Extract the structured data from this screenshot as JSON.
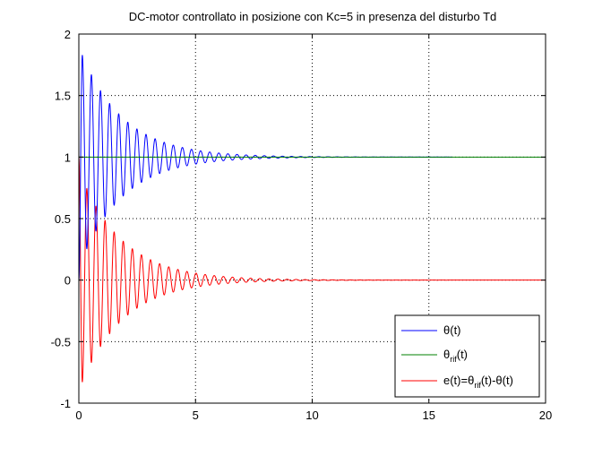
{
  "chart_data": {
    "type": "line",
    "title": "DC-motor controllato in posizione con Kc=5 in presenza del disturbo Td",
    "xlabel": "",
    "ylabel": "",
    "xlim": [
      0,
      20
    ],
    "ylim": [
      -1,
      2
    ],
    "xticks": [
      0,
      5,
      10,
      15,
      20
    ],
    "yticks": [
      -1,
      -0.5,
      0,
      0.5,
      1,
      1.5,
      2
    ],
    "xtick_labels": [
      "0",
      "5",
      "10",
      "15",
      "20"
    ],
    "ytick_labels": [
      "-1",
      "-0.5",
      "0",
      "0.5",
      "1",
      "1.5",
      "2"
    ],
    "grid": true,
    "legend_position": "bottom-right",
    "legend": [
      {
        "base": "θ",
        "sub": "",
        "tail": "(t)",
        "color": "#0000ff"
      },
      {
        "base": "θ",
        "sub": "rif",
        "tail": "(t)",
        "color": "#008000"
      },
      {
        "base": "e(t)=θ",
        "sub": "rif",
        "tail": "(t)-θ(t)",
        "color": "#ff0000"
      }
    ],
    "series": [
      {
        "name": "θ(t)",
        "color": "#0000ff",
        "kind": "damped_oscillation",
        "offset": 1,
        "initial_value": 0,
        "decay_rate": 0.55,
        "peak_times": [
          0.15,
          0.54,
          0.93,
          1.32,
          1.71,
          2.1,
          2.49,
          2.88,
          3.27,
          3.66,
          4.05,
          4.44,
          4.83,
          5.22,
          5.61,
          6.0,
          6.39
        ],
        "peak_values": [
          1.88,
          1.69,
          1.55,
          1.45,
          1.37,
          1.29,
          1.23,
          1.19,
          1.15,
          1.12,
          1.1,
          1.08,
          1.06,
          1.05,
          1.04,
          1.03,
          1.02
        ],
        "x_end": 16
      },
      {
        "name": "θrif(t)",
        "color": "#008000",
        "kind": "constant",
        "value": 1,
        "x_range": [
          0,
          20
        ]
      },
      {
        "name": "e(t)=θrif(t)-θ(t)",
        "color": "#ff0000",
        "kind": "damped_oscillation",
        "offset": 0,
        "initial_value": 1,
        "decay_rate": 0.55,
        "trough_times": [
          0.15,
          0.54,
          0.93,
          1.32,
          1.71,
          2.1,
          2.49,
          2.88,
          3.27,
          3.66,
          4.05,
          4.44,
          4.83,
          5.22,
          5.61,
          6.0,
          6.39
        ],
        "trough_values": [
          -0.88,
          -0.69,
          -0.55,
          -0.45,
          -0.37,
          -0.29,
          -0.23,
          -0.19,
          -0.15,
          -0.12,
          -0.1,
          -0.08,
          -0.06,
          -0.05,
          -0.04,
          -0.03,
          -0.02
        ],
        "x_end": 20
      }
    ]
  }
}
